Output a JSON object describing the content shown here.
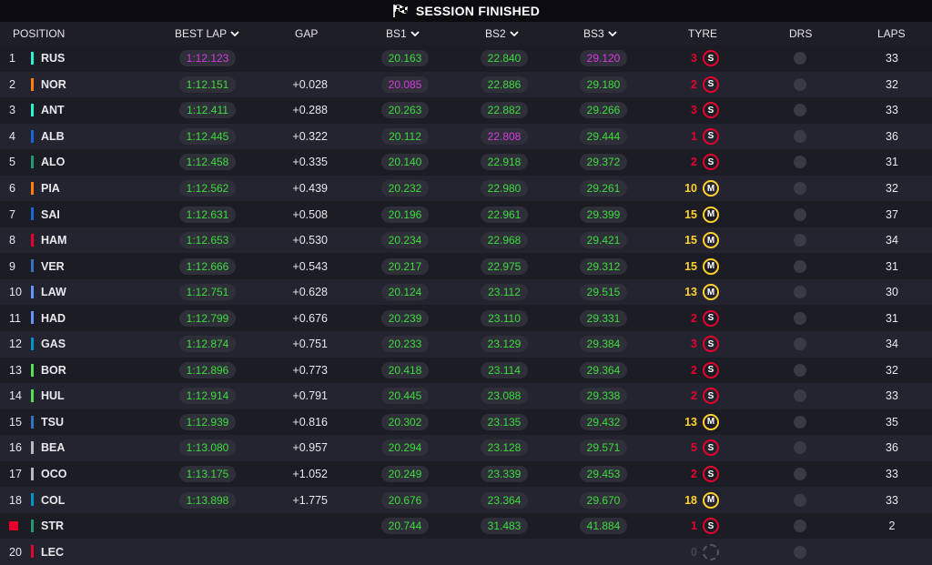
{
  "session": {
    "title": "SESSION FINISHED"
  },
  "colors": {
    "green": "#3ddc3d",
    "purple": "#d63ae0",
    "soft": "#e8002d",
    "medium": "#ffd12e"
  },
  "headers": {
    "position": "POSITION",
    "best_lap": "BEST LAP",
    "gap": "GAP",
    "bs1": "BS1",
    "bs2": "BS2",
    "bs3": "BS3",
    "tyre": "TYRE",
    "drs": "DRS",
    "laps": "LAPS"
  },
  "rows": [
    {
      "pos": "1",
      "driver": "RUS",
      "team_color": "#27f4d2",
      "best": "1:12.123",
      "best_c": "purple",
      "gap": "",
      "bs1": "20.163",
      "bs1_c": "green",
      "bs2": "22.840",
      "bs2_c": "green",
      "bs3": "29.120",
      "bs3_c": "purple",
      "tyre_laps": "3",
      "tyre": "soft",
      "tyre_letter": "S",
      "laps": "33"
    },
    {
      "pos": "2",
      "driver": "NOR",
      "team_color": "#ff8000",
      "best": "1:12.151",
      "best_c": "green",
      "gap": "+0.028",
      "bs1": "20.085",
      "bs1_c": "purple",
      "bs2": "22.886",
      "bs2_c": "green",
      "bs3": "29.180",
      "bs3_c": "green",
      "tyre_laps": "2",
      "tyre": "soft",
      "tyre_letter": "S",
      "laps": "32"
    },
    {
      "pos": "3",
      "driver": "ANT",
      "team_color": "#27f4d2",
      "best": "1:12.411",
      "best_c": "green",
      "gap": "+0.288",
      "bs1": "20.263",
      "bs1_c": "green",
      "bs2": "22.882",
      "bs2_c": "green",
      "bs3": "29.266",
      "bs3_c": "green",
      "tyre_laps": "3",
      "tyre": "soft",
      "tyre_letter": "S",
      "laps": "33"
    },
    {
      "pos": "4",
      "driver": "ALB",
      "team_color": "#1868db",
      "best": "1:12.445",
      "best_c": "green",
      "gap": "+0.322",
      "bs1": "20.112",
      "bs1_c": "green",
      "bs2": "22.808",
      "bs2_c": "purple",
      "bs3": "29.444",
      "bs3_c": "green",
      "tyre_laps": "1",
      "tyre": "soft",
      "tyre_letter": "S",
      "laps": "36"
    },
    {
      "pos": "5",
      "driver": "ALO",
      "team_color": "#229971",
      "best": "1:12.458",
      "best_c": "green",
      "gap": "+0.335",
      "bs1": "20.140",
      "bs1_c": "green",
      "bs2": "22.918",
      "bs2_c": "green",
      "bs3": "29.372",
      "bs3_c": "green",
      "tyre_laps": "2",
      "tyre": "soft",
      "tyre_letter": "S",
      "laps": "31"
    },
    {
      "pos": "6",
      "driver": "PIA",
      "team_color": "#ff8000",
      "best": "1:12.562",
      "best_c": "green",
      "gap": "+0.439",
      "bs1": "20.232",
      "bs1_c": "green",
      "bs2": "22.980",
      "bs2_c": "green",
      "bs3": "29.261",
      "bs3_c": "green",
      "tyre_laps": "10",
      "tyre": "medium",
      "tyre_letter": "M",
      "laps": "32"
    },
    {
      "pos": "7",
      "driver": "SAI",
      "team_color": "#1868db",
      "best": "1:12.631",
      "best_c": "green",
      "gap": "+0.508",
      "bs1": "20.196",
      "bs1_c": "green",
      "bs2": "22.961",
      "bs2_c": "green",
      "bs3": "29.399",
      "bs3_c": "green",
      "tyre_laps": "15",
      "tyre": "medium",
      "tyre_letter": "M",
      "laps": "37"
    },
    {
      "pos": "8",
      "driver": "HAM",
      "team_color": "#e8002d",
      "best": "1:12.653",
      "best_c": "green",
      "gap": "+0.530",
      "bs1": "20.234",
      "bs1_c": "green",
      "bs2": "22.968",
      "bs2_c": "green",
      "bs3": "29.421",
      "bs3_c": "green",
      "tyre_laps": "15",
      "tyre": "medium",
      "tyre_letter": "M",
      "laps": "34"
    },
    {
      "pos": "9",
      "driver": "VER",
      "team_color": "#3671c6",
      "best": "1:12.666",
      "best_c": "green",
      "gap": "+0.543",
      "bs1": "20.217",
      "bs1_c": "green",
      "bs2": "22.975",
      "bs2_c": "green",
      "bs3": "29.312",
      "bs3_c": "green",
      "tyre_laps": "15",
      "tyre": "medium",
      "tyre_letter": "M",
      "laps": "31"
    },
    {
      "pos": "10",
      "driver": "LAW",
      "team_color": "#6692ff",
      "best": "1:12.751",
      "best_c": "green",
      "gap": "+0.628",
      "bs1": "20.124",
      "bs1_c": "green",
      "bs2": "23.112",
      "bs2_c": "green",
      "bs3": "29.515",
      "bs3_c": "green",
      "tyre_laps": "13",
      "tyre": "medium",
      "tyre_letter": "M",
      "laps": "30"
    },
    {
      "pos": "11",
      "driver": "HAD",
      "team_color": "#6692ff",
      "best": "1:12.799",
      "best_c": "green",
      "gap": "+0.676",
      "bs1": "20.239",
      "bs1_c": "green",
      "bs2": "23.110",
      "bs2_c": "green",
      "bs3": "29.331",
      "bs3_c": "green",
      "tyre_laps": "2",
      "tyre": "soft",
      "tyre_letter": "S",
      "laps": "31"
    },
    {
      "pos": "12",
      "driver": "GAS",
      "team_color": "#0093cc",
      "best": "1:12.874",
      "best_c": "green",
      "gap": "+0.751",
      "bs1": "20.233",
      "bs1_c": "green",
      "bs2": "23.129",
      "bs2_c": "green",
      "bs3": "29.384",
      "bs3_c": "green",
      "tyre_laps": "3",
      "tyre": "soft",
      "tyre_letter": "S",
      "laps": "34"
    },
    {
      "pos": "13",
      "driver": "BOR",
      "team_color": "#52e252",
      "best": "1:12.896",
      "best_c": "green",
      "gap": "+0.773",
      "bs1": "20.418",
      "bs1_c": "green",
      "bs2": "23.114",
      "bs2_c": "green",
      "bs3": "29.364",
      "bs3_c": "green",
      "tyre_laps": "2",
      "tyre": "soft",
      "tyre_letter": "S",
      "laps": "32"
    },
    {
      "pos": "14",
      "driver": "HUL",
      "team_color": "#52e252",
      "best": "1:12.914",
      "best_c": "green",
      "gap": "+0.791",
      "bs1": "20.445",
      "bs1_c": "green",
      "bs2": "23.088",
      "bs2_c": "green",
      "bs3": "29.338",
      "bs3_c": "green",
      "tyre_laps": "2",
      "tyre": "soft",
      "tyre_letter": "S",
      "laps": "33"
    },
    {
      "pos": "15",
      "driver": "TSU",
      "team_color": "#3671c6",
      "best": "1:12.939",
      "best_c": "green",
      "gap": "+0.816",
      "bs1": "20.302",
      "bs1_c": "green",
      "bs2": "23.135",
      "bs2_c": "green",
      "bs3": "29.432",
      "bs3_c": "green",
      "tyre_laps": "13",
      "tyre": "medium",
      "tyre_letter": "M",
      "laps": "35"
    },
    {
      "pos": "16",
      "driver": "BEA",
      "team_color": "#b6babd",
      "best": "1:13.080",
      "best_c": "green",
      "gap": "+0.957",
      "bs1": "20.294",
      "bs1_c": "green",
      "bs2": "23.128",
      "bs2_c": "green",
      "bs3": "29.571",
      "bs3_c": "green",
      "tyre_laps": "5",
      "tyre": "soft",
      "tyre_letter": "S",
      "laps": "36"
    },
    {
      "pos": "17",
      "driver": "OCO",
      "team_color": "#b6babd",
      "best": "1:13.175",
      "best_c": "green",
      "gap": "+1.052",
      "bs1": "20.249",
      "bs1_c": "green",
      "bs2": "23.339",
      "bs2_c": "green",
      "bs3": "29.453",
      "bs3_c": "green",
      "tyre_laps": "2",
      "tyre": "soft",
      "tyre_letter": "S",
      "laps": "33"
    },
    {
      "pos": "18",
      "driver": "COL",
      "team_color": "#0093cc",
      "best": "1:13.898",
      "best_c": "green",
      "gap": "+1.775",
      "bs1": "20.676",
      "bs1_c": "green",
      "bs2": "23.364",
      "bs2_c": "green",
      "bs3": "29.670",
      "bs3_c": "green",
      "tyre_laps": "18",
      "tyre": "medium",
      "tyre_letter": "M",
      "laps": "33"
    },
    {
      "pos": "",
      "driver": "STR",
      "team_color": "#229971",
      "retired": true,
      "best": "",
      "best_c": "green",
      "gap": "",
      "bs1": "20.744",
      "bs1_c": "green",
      "bs2": "31.483",
      "bs2_c": "green",
      "bs3": "41.884",
      "bs3_c": "green",
      "tyre_laps": "1",
      "tyre": "soft",
      "tyre_letter": "S",
      "laps": "2"
    },
    {
      "pos": "20",
      "driver": "LEC",
      "team_color": "#e8002d",
      "best": "",
      "best_c": "green",
      "gap": "",
      "bs1": "",
      "bs1_c": "green",
      "bs2": "",
      "bs2_c": "green",
      "bs3": "",
      "bs3_c": "green",
      "tyre_laps": "0",
      "tyre": "none",
      "tyre_letter": "",
      "laps": ""
    }
  ]
}
